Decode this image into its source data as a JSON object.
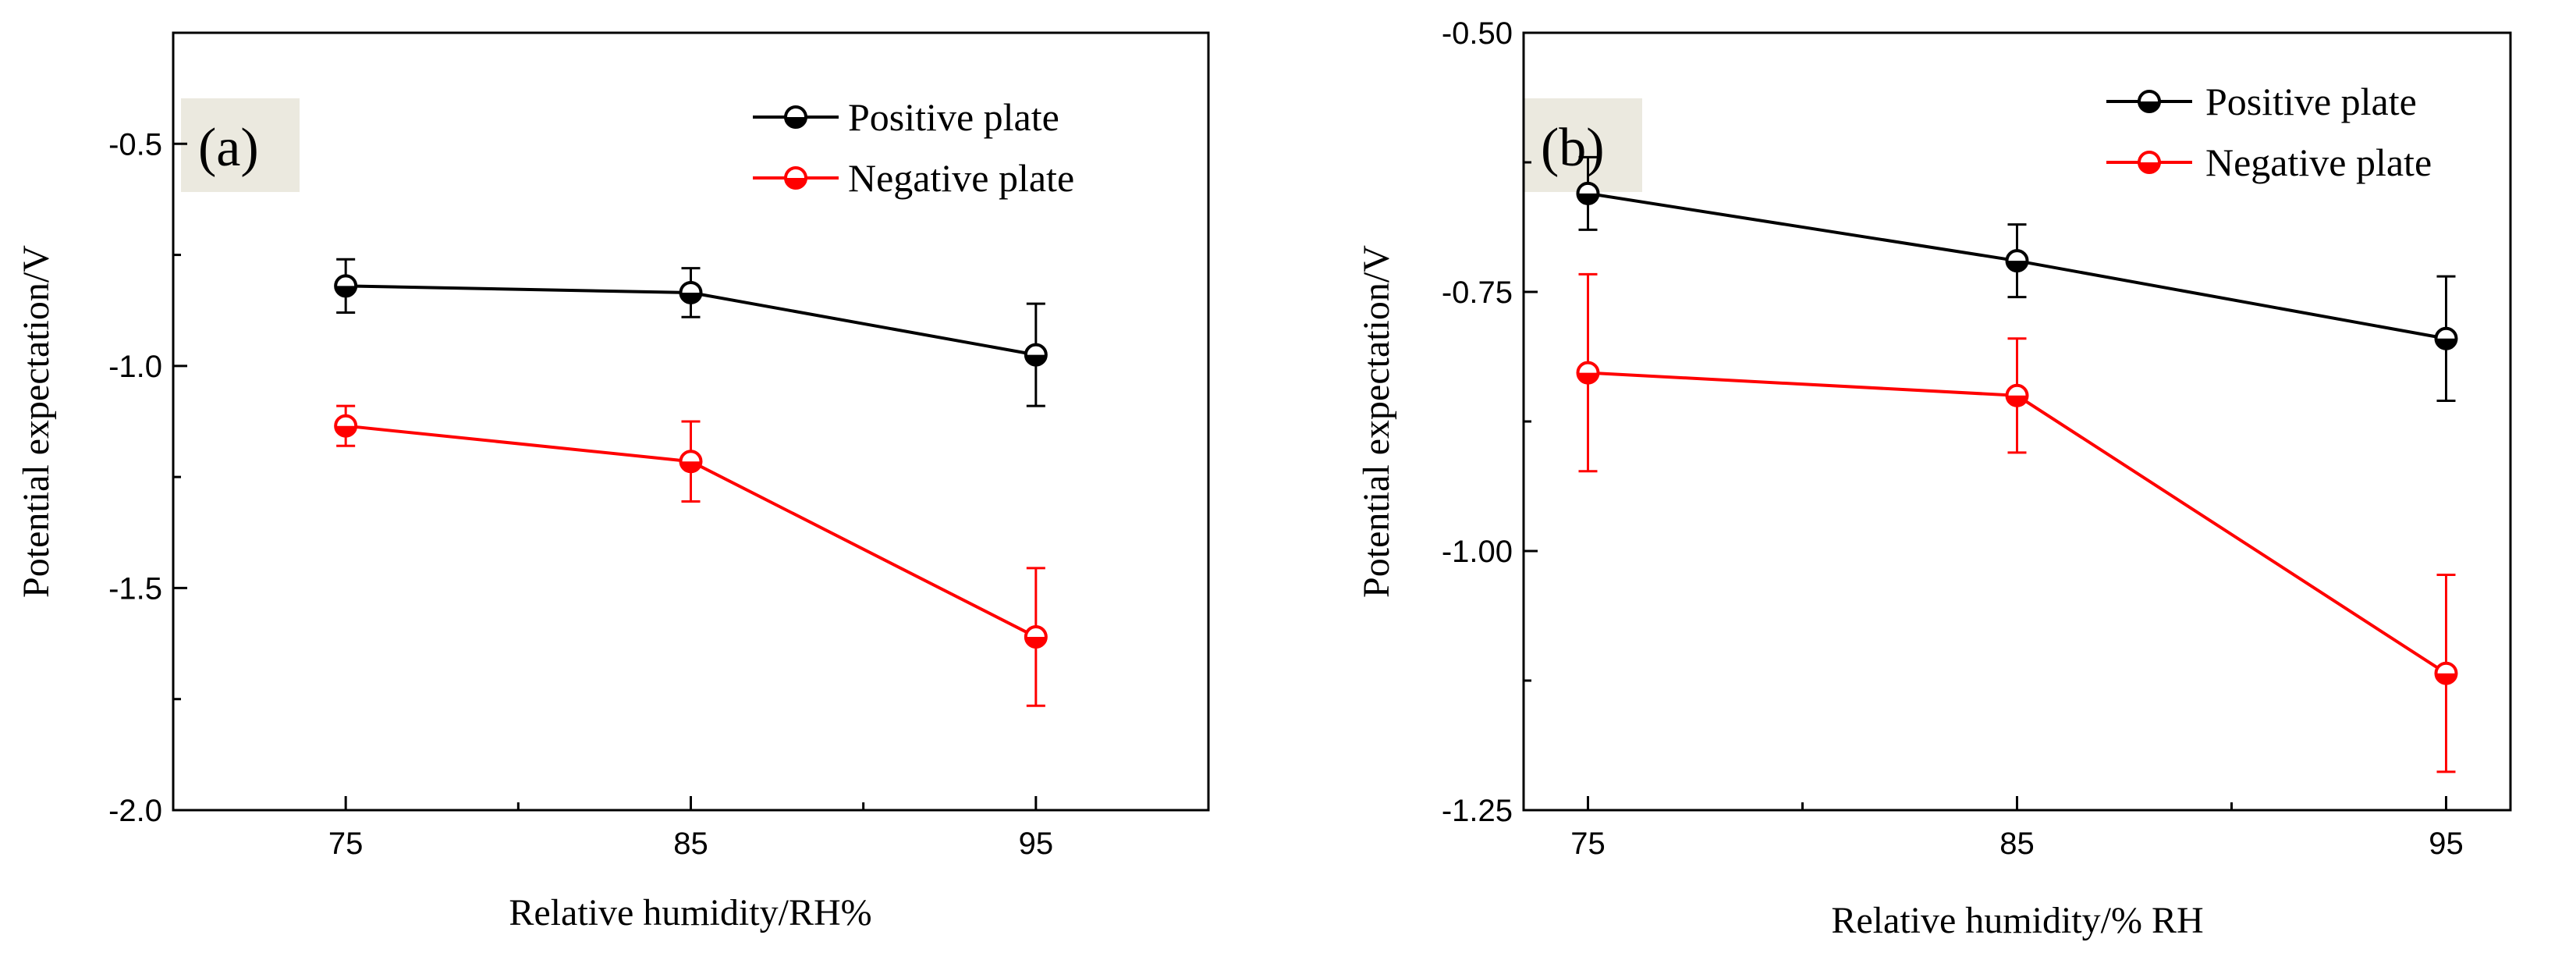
{
  "chart_data": [
    {
      "type": "line",
      "panel_label": "(a)",
      "xlabel": "Relative humidity/RH%",
      "ylabel": "Potential expectation/V",
      "x": [
        75,
        85,
        95
      ],
      "xticks": [
        "75",
        "85",
        "95"
      ],
      "xlim": [
        70,
        100
      ],
      "ylim": [
        -2.0,
        -0.25
      ],
      "yticks": [
        -0.5,
        -1.0,
        -1.5,
        -2.0
      ],
      "ytick_labels": [
        "-0.5",
        "-1.0",
        "-1.5",
        "-2.0"
      ],
      "legend_position": "top-right",
      "grid": false,
      "series": [
        {
          "name": "Positive plate",
          "color": "#000000",
          "values": [
            -0.82,
            -0.835,
            -0.975
          ],
          "errors": [
            0.06,
            0.055,
            0.115
          ]
        },
        {
          "name": "Negative plate",
          "color": "#ff0000",
          "values": [
            -1.135,
            -1.215,
            -1.61
          ],
          "errors": [
            0.045,
            0.09,
            0.155
          ]
        }
      ]
    },
    {
      "type": "line",
      "panel_label": "(b)",
      "xlabel": "Relative humidity/% RH",
      "ylabel": "Potential expectation/V",
      "x": [
        75,
        85,
        95
      ],
      "xticks": [
        "75",
        "85",
        "95"
      ],
      "xlim": [
        73.5,
        96.5
      ],
      "ylim": [
        -1.25,
        -0.5
      ],
      "yticks": [
        -0.5,
        -0.75,
        -1.0,
        -1.25
      ],
      "ytick_labels": [
        "-0.50",
        "-0.75",
        "-1.00",
        "-1.25"
      ],
      "legend_position": "top-right",
      "grid": false,
      "series": [
        {
          "name": "Positive plate",
          "color": "#000000",
          "values": [
            -0.655,
            -0.72,
            -0.795
          ],
          "errors": [
            0.035,
            0.035,
            0.06
          ]
        },
        {
          "name": "Negative plate",
          "color": "#ff0000",
          "values": [
            -0.828,
            -0.85,
            -1.118
          ],
          "errors": [
            0.095,
            0.055,
            0.095
          ]
        }
      ]
    }
  ]
}
